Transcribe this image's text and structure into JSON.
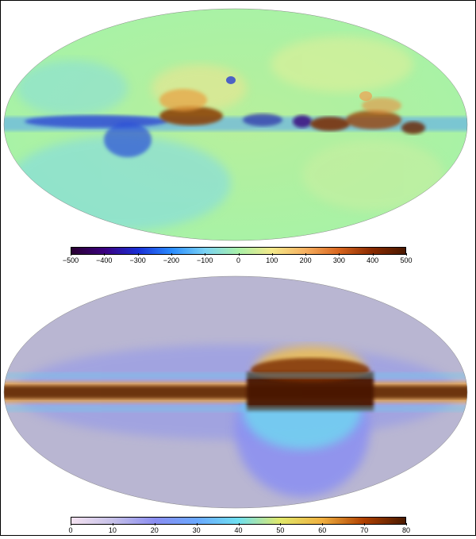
{
  "figure": {
    "panels": [
      {
        "id": "top-map",
        "projection": "mollweide",
        "colormap": "jet",
        "colorbar": {
          "min": -500,
          "max": 500,
          "tick_labels": [
            "−500",
            "−400",
            "−300",
            "−200",
            "−100",
            "0",
            "100",
            "200",
            "300",
            "400",
            "500"
          ],
          "colors": [
            "#2a0032",
            "#3b0080",
            "#1a2fd6",
            "#2a8cff",
            "#7ad3f5",
            "#a8f0a8",
            "#f4e98a",
            "#f6b060",
            "#d9661f",
            "#8a2a00",
            "#4a1800"
          ]
        }
      },
      {
        "id": "bottom-map",
        "projection": "mollweide",
        "colormap": "custom",
        "colorbar": {
          "min": 0,
          "max": 80,
          "tick_labels": [
            "0",
            "10",
            "20",
            "30",
            "40",
            "50",
            "60",
            "70",
            "80"
          ],
          "colors": [
            "#f4e2f0",
            "#c6c0e8",
            "#8a8df0",
            "#6aa8ff",
            "#6fe0f0",
            "#e0e86a",
            "#f0b040",
            "#b04000",
            "#4a1a00"
          ]
        }
      }
    ]
  }
}
